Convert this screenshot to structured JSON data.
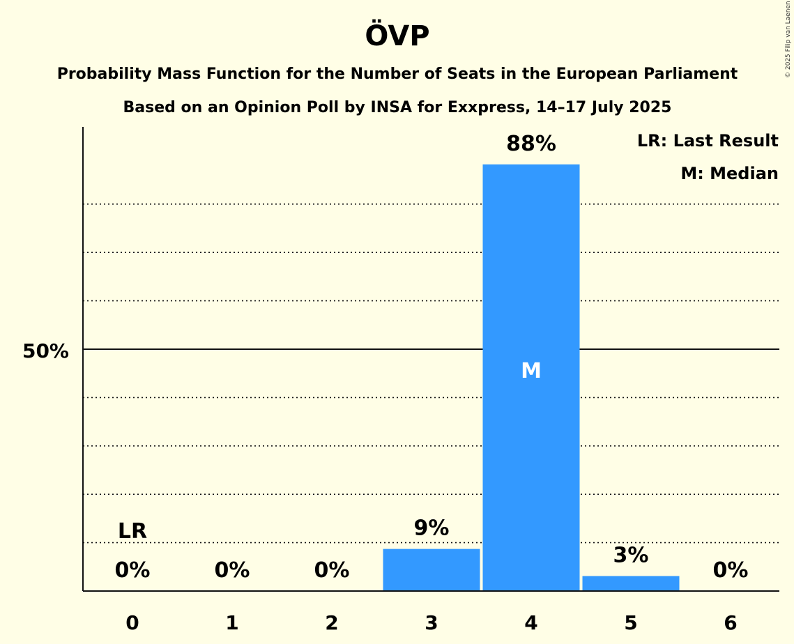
{
  "chart_data": {
    "type": "bar",
    "title": "ÖVP",
    "subtitle_1": "Probability Mass Function for the Number of Seats in the European Parliament",
    "subtitle_2": "Based on an Opinion Poll by INSA for Exxpress, 14–17 July 2025",
    "categories": [
      "0",
      "1",
      "2",
      "3",
      "4",
      "5",
      "6"
    ],
    "values": [
      0,
      0,
      0,
      8.7,
      88.2,
      3.1,
      0
    ],
    "value_labels": [
      "0%",
      "0%",
      "0%",
      "9%",
      "88%",
      "3%",
      "0%"
    ],
    "ylim": [
      0,
      100
    ],
    "y_ticks": [
      {
        "value": 50,
        "label": "50%"
      }
    ],
    "gridlines_dotted": [
      10,
      20,
      30,
      40,
      60,
      70,
      80
    ],
    "last_result": {
      "category": "0",
      "label": "LR"
    },
    "median": {
      "category": "4",
      "label": "M"
    },
    "legend": [
      "LR: Last Result",
      "M: Median"
    ],
    "legend_position": "top-right",
    "bar_color": "#3399FF"
  },
  "copyright": "© 2025 Filip van Laenen"
}
